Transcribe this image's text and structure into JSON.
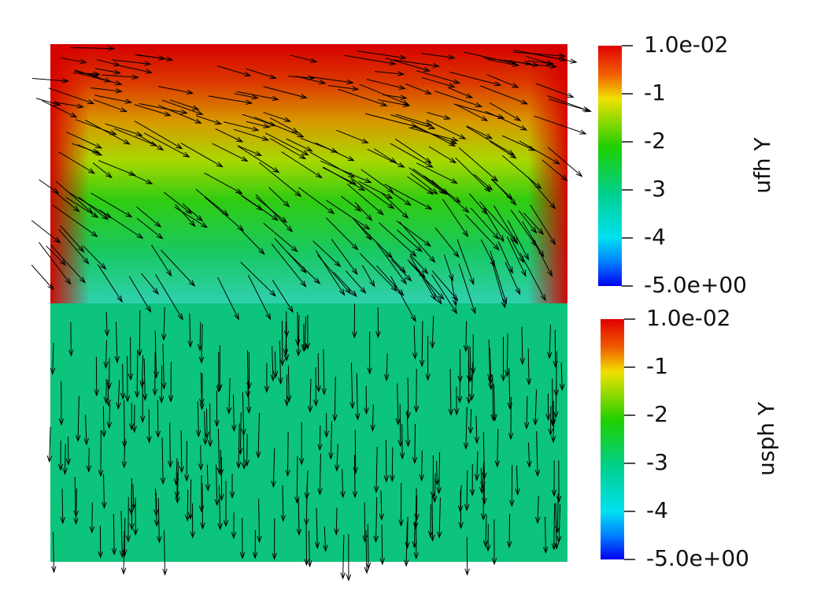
{
  "legends": [
    {
      "title": "ufh Y",
      "ticks": [
        "1.0e-02",
        "-1",
        "-2",
        "-3",
        "-4",
        "-5.0e+00"
      ]
    },
    {
      "title": "usph Y",
      "ticks": [
        "1.0e-02",
        "-1",
        "-2",
        "-3",
        "-4",
        "-5.0e+00"
      ]
    }
  ]
}
